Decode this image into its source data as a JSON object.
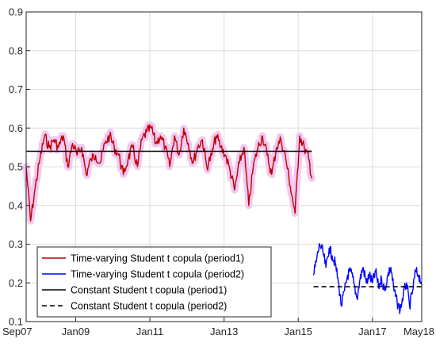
{
  "chart_data": {
    "type": "line",
    "title": "",
    "xlabel": "",
    "ylabel": "",
    "xlim": [
      "2007-09-01",
      "2018-05-01"
    ],
    "ylim": [
      0.1,
      0.9
    ],
    "grid": true,
    "legend_position": "bottom-left",
    "x_ticks": [
      {
        "date": "2007-09-01",
        "label": "Sep07"
      },
      {
        "date": "2009-01-01",
        "label": "Jan09"
      },
      {
        "date": "2011-01-01",
        "label": "Jan11"
      },
      {
        "date": "2013-01-01",
        "label": "Jan13"
      },
      {
        "date": "2015-01-01",
        "label": "Jan15"
      },
      {
        "date": "2017-01-01",
        "label": "Jan17"
      },
      {
        "date": "2018-05-01",
        "label": "May18"
      }
    ],
    "y_ticks": [
      {
        "value": 0.1,
        "label": "0.1"
      },
      {
        "value": 0.2,
        "label": "0.2"
      },
      {
        "value": 0.3,
        "label": "0.3"
      },
      {
        "value": 0.4,
        "label": "0.4"
      },
      {
        "value": 0.5,
        "label": "0.5"
      },
      {
        "value": 0.6,
        "label": "0.6"
      },
      {
        "value": 0.7,
        "label": "0.7"
      },
      {
        "value": 0.8,
        "label": "0.8"
      },
      {
        "value": 0.9,
        "label": "0.9"
      }
    ],
    "series": [
      {
        "name": "Time-varying Student t copula (period1)",
        "color": "#c00000",
        "band_color": "#f2c9f2",
        "style": "solid",
        "x": [
          "2007-09-01",
          "2007-10-15",
          "2007-12-01",
          "2008-01-15",
          "2008-03-01",
          "2008-04-15",
          "2008-06-01",
          "2008-07-15",
          "2008-09-01",
          "2008-10-15",
          "2008-12-01",
          "2009-01-15",
          "2009-03-01",
          "2009-04-15",
          "2009-06-01",
          "2009-07-15",
          "2009-09-01",
          "2009-10-15",
          "2009-12-01",
          "2010-01-15",
          "2010-03-01",
          "2010-04-15",
          "2010-06-01",
          "2010-07-15",
          "2010-09-01",
          "2010-10-15",
          "2010-12-01",
          "2011-01-15",
          "2011-03-01",
          "2011-04-15",
          "2011-06-01",
          "2011-07-15",
          "2011-09-01",
          "2011-10-15",
          "2011-12-01",
          "2012-01-15",
          "2012-03-01",
          "2012-04-15",
          "2012-06-01",
          "2012-07-15",
          "2012-09-01",
          "2012-10-15",
          "2012-12-01",
          "2013-01-15",
          "2013-03-01",
          "2013-04-15",
          "2013-06-01",
          "2013-07-15",
          "2013-09-01",
          "2013-10-15",
          "2013-12-01",
          "2014-01-15",
          "2014-03-01",
          "2014-04-15",
          "2014-06-01",
          "2014-07-15",
          "2014-09-01",
          "2014-10-15",
          "2014-12-01",
          "2015-01-15",
          "2015-03-01",
          "2015-04-15",
          "2015-05-15"
        ],
        "y": [
          0.5,
          0.36,
          0.45,
          0.52,
          0.58,
          0.55,
          0.57,
          0.55,
          0.58,
          0.5,
          0.56,
          0.53,
          0.55,
          0.48,
          0.52,
          0.53,
          0.51,
          0.56,
          0.58,
          0.55,
          0.53,
          0.48,
          0.52,
          0.55,
          0.5,
          0.57,
          0.59,
          0.6,
          0.56,
          0.58,
          0.55,
          0.5,
          0.58,
          0.53,
          0.6,
          0.56,
          0.51,
          0.55,
          0.57,
          0.5,
          0.53,
          0.58,
          0.55,
          0.53,
          0.49,
          0.44,
          0.51,
          0.55,
          0.4,
          0.5,
          0.55,
          0.58,
          0.53,
          0.48,
          0.55,
          0.57,
          0.52,
          0.45,
          0.38,
          0.58,
          0.55,
          0.52,
          0.47
        ]
      },
      {
        "name": "Time-varying Student t copula (period2)",
        "color": "#0000ff",
        "style": "solid",
        "x": [
          "2015-06-01",
          "2015-07-01",
          "2015-08-01",
          "2015-09-01",
          "2015-10-01",
          "2015-11-01",
          "2015-12-01",
          "2016-01-01",
          "2016-02-01",
          "2016-03-01",
          "2016-04-01",
          "2016-05-01",
          "2016-06-01",
          "2016-07-01",
          "2016-08-01",
          "2016-09-01",
          "2016-10-01",
          "2016-11-01",
          "2016-12-01",
          "2017-01-01",
          "2017-02-01",
          "2017-03-01",
          "2017-04-01",
          "2017-05-01",
          "2017-06-01",
          "2017-07-01",
          "2017-08-01",
          "2017-09-01",
          "2017-10-01",
          "2017-11-01",
          "2017-12-01",
          "2018-01-01",
          "2018-02-01",
          "2018-03-01",
          "2018-04-01",
          "2018-05-01"
        ],
        "y": [
          0.22,
          0.26,
          0.3,
          0.28,
          0.24,
          0.29,
          0.27,
          0.25,
          0.2,
          0.14,
          0.18,
          0.22,
          0.23,
          0.2,
          0.16,
          0.21,
          0.24,
          0.2,
          0.22,
          0.2,
          0.23,
          0.19,
          0.21,
          0.18,
          0.22,
          0.24,
          0.18,
          0.15,
          0.13,
          0.17,
          0.2,
          0.14,
          0.18,
          0.23,
          0.22,
          0.2
        ]
      },
      {
        "name": "Constant Student t copula (period1)",
        "color": "#000000",
        "style": "solid",
        "x": [
          "2007-09-01",
          "2015-05-15"
        ],
        "y": [
          0.54,
          0.54
        ]
      },
      {
        "name": "Constant Student t copula (period2)",
        "color": "#000000",
        "style": "dashed",
        "x": [
          "2015-06-01",
          "2018-05-01"
        ],
        "y": [
          0.19,
          0.19
        ]
      }
    ]
  }
}
